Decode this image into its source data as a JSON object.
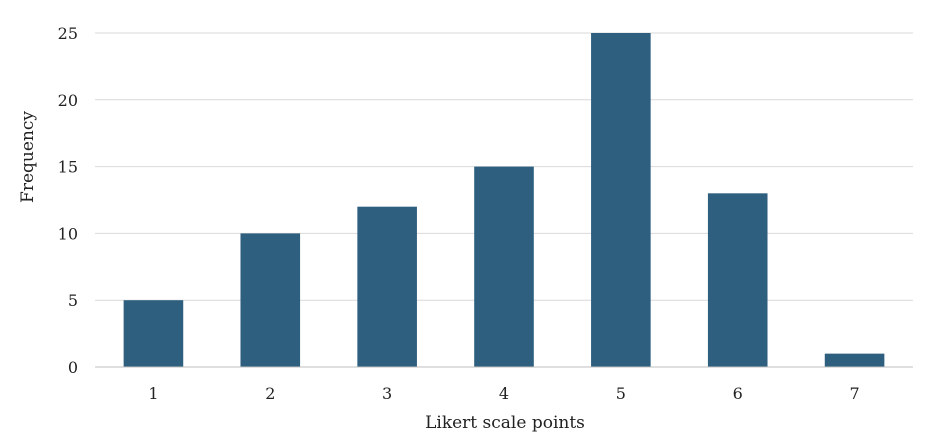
{
  "chart_data": {
    "type": "bar",
    "categories": [
      "1",
      "2",
      "3",
      "4",
      "5",
      "6",
      "7"
    ],
    "values": [
      5,
      10,
      12,
      15,
      25,
      13,
      1
    ],
    "title": "",
    "xlabel": "Likert scale points",
    "ylabel": "Frequency",
    "ylim": [
      0,
      25
    ],
    "yticks": [
      "0",
      "5",
      "10",
      "15",
      "20",
      "25"
    ],
    "grid": true,
    "legend": "none",
    "colors": {
      "bar": "#2e5f7f",
      "grid": "#d9d9d9",
      "baseline": "#bfbfbf"
    }
  }
}
